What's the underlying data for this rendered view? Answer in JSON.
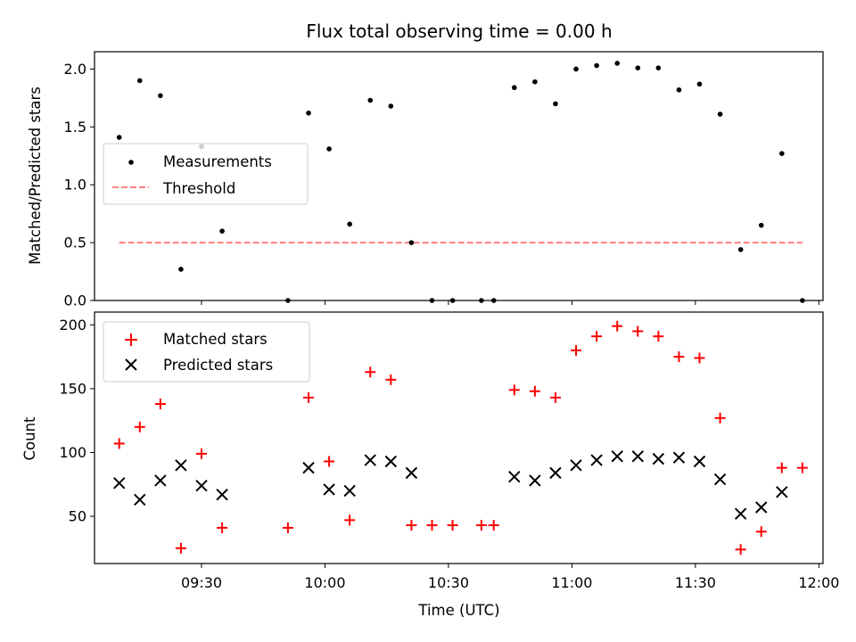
{
  "chart_data": [
    {
      "type": "scatter",
      "title": "Flux total observing time = 0.00 h",
      "xlabel": "",
      "ylabel": "Matched/Predicted stars",
      "ylim": [
        0,
        2.15
      ],
      "yticks": [
        "0.0",
        "0.5",
        "1.0",
        "1.5",
        "2.0"
      ],
      "ytick_values": [
        0,
        0.5,
        1.0,
        1.5,
        2.0
      ],
      "legend_position": "center-left",
      "series": [
        {
          "name": "Measurements",
          "marker": "dot",
          "color": "#000000",
          "x": [
            "09:10",
            "09:15",
            "09:20",
            "09:25",
            "09:30",
            "09:35",
            "09:51",
            "09:56",
            "10:01",
            "10:06",
            "10:11",
            "10:16",
            "10:21",
            "10:26",
            "10:31",
            "10:38",
            "10:41",
            "10:46",
            "10:51",
            "10:56",
            "11:01",
            "11:06",
            "11:11",
            "11:16",
            "11:21",
            "11:26",
            "11:31",
            "11:36",
            "11:41",
            "11:46",
            "11:51",
            "11:56"
          ],
          "y": [
            1.41,
            1.9,
            1.77,
            0.27,
            1.33,
            0.6,
            0.0,
            1.62,
            1.31,
            0.66,
            1.73,
            1.68,
            0.5,
            0.0,
            0.0,
            0.0,
            0.0,
            1.84,
            1.89,
            1.7,
            2.0,
            2.03,
            2.05,
            2.01,
            2.01,
            1.82,
            1.87,
            1.61,
            0.44,
            0.65,
            1.27,
            0.0
          ]
        },
        {
          "name": "Threshold",
          "marker": "dashed-line",
          "color": "#ff7f7f",
          "x": [
            "09:10",
            "11:56"
          ],
          "y": [
            0.5,
            0.5
          ]
        }
      ]
    },
    {
      "type": "scatter",
      "title": "",
      "xlabel": "Time (UTC)",
      "ylabel": "Count",
      "ylim": [
        13,
        210
      ],
      "yticks": [
        "50",
        "100",
        "150",
        "200"
      ],
      "ytick_values": [
        50,
        100,
        150,
        200
      ],
      "xlim": [
        "09:04",
        "12:01"
      ],
      "xticks": [
        "09:30",
        "10:00",
        "10:30",
        "11:00",
        "11:30",
        "12:00"
      ],
      "legend_position": "upper-left",
      "series": [
        {
          "name": "Matched stars",
          "marker": "plus",
          "color": "#ff0000",
          "x": [
            "09:10",
            "09:15",
            "09:20",
            "09:25",
            "09:30",
            "09:35",
            "09:51",
            "09:56",
            "10:01",
            "10:06",
            "10:11",
            "10:16",
            "10:21",
            "10:26",
            "10:31",
            "10:38",
            "10:41",
            "10:46",
            "10:51",
            "10:56",
            "11:01",
            "11:06",
            "11:11",
            "11:16",
            "11:21",
            "11:26",
            "11:31",
            "11:36",
            "11:41",
            "11:46",
            "11:51",
            "11:56"
          ],
          "y": [
            107,
            120,
            138,
            25,
            99,
            41,
            41,
            143,
            93,
            47,
            163,
            157,
            43,
            43,
            43,
            43,
            43,
            149,
            148,
            143,
            180,
            191,
            199,
            195,
            191,
            175,
            174,
            127,
            24,
            38,
            88,
            88
          ]
        },
        {
          "name": "Predicted stars",
          "marker": "x",
          "color": "#000000",
          "x": [
            "09:10",
            "09:15",
            "09:20",
            "09:25",
            "09:30",
            "09:35",
            "09:56",
            "10:01",
            "10:06",
            "10:11",
            "10:16",
            "10:21",
            "10:46",
            "10:51",
            "10:56",
            "11:01",
            "11:06",
            "11:11",
            "11:16",
            "11:21",
            "11:26",
            "11:31",
            "11:36",
            "11:41",
            "11:46",
            "11:51"
          ],
          "y": [
            76,
            63,
            78,
            90,
            74,
            67,
            88,
            71,
            70,
            94,
            93,
            84,
            81,
            78,
            84,
            90,
            94,
            97,
            97,
            95,
            96,
            93,
            79,
            52,
            57,
            69
          ]
        }
      ]
    }
  ]
}
